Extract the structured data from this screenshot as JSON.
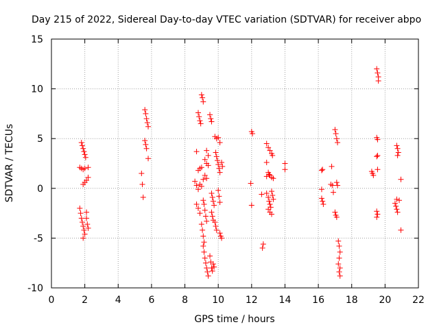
{
  "chart_data": {
    "type": "scatter",
    "title": "Day 215 of 2022, Sidereal Day-to-day VTEC variation (SDTVAR) for receiver abpo",
    "xlabel": "GPS time / hours",
    "ylabel": "SDTVAR / TECUs",
    "xlim": [
      0,
      22
    ],
    "ylim": [
      -10,
      15
    ],
    "xticks": [
      0,
      2,
      4,
      6,
      8,
      10,
      12,
      14,
      16,
      18,
      20,
      22
    ],
    "yticks": [
      -10,
      -5,
      0,
      5,
      10,
      15
    ],
    "xtick_labels": [
      "0",
      "2",
      "4",
      "6",
      "8",
      "10",
      "12",
      "14",
      "16",
      "18",
      "20",
      "22"
    ],
    "ytick_labels": [
      "-10",
      "-5",
      "0",
      "5",
      "10",
      "15"
    ],
    "grid": true,
    "marker": "+",
    "color": "#ff0000",
    "series": [
      {
        "name": "SDTVAR",
        "points": [
          [
            1.8,
            4.6
          ],
          [
            1.85,
            4.3
          ],
          [
            1.9,
            4.0
          ],
          [
            1.95,
            3.7
          ],
          [
            2.0,
            3.4
          ],
          [
            2.05,
            3.1
          ],
          [
            1.7,
            2.1
          ],
          [
            1.8,
            2.0
          ],
          [
            1.9,
            1.9
          ],
          [
            2.0,
            2.0
          ],
          [
            2.2,
            2.1
          ],
          [
            1.9,
            0.4
          ],
          [
            2.0,
            0.6
          ],
          [
            2.1,
            0.8
          ],
          [
            2.2,
            1.1
          ],
          [
            1.7,
            -2.0
          ],
          [
            1.75,
            -2.5
          ],
          [
            1.8,
            -3.0
          ],
          [
            1.85,
            -3.4
          ],
          [
            1.9,
            -3.8
          ],
          [
            1.95,
            -4.2
          ],
          [
            2.0,
            -4.6
          ],
          [
            1.9,
            -5.0
          ],
          [
            2.1,
            -2.4
          ],
          [
            2.1,
            -3.0
          ],
          [
            2.15,
            -3.6
          ],
          [
            2.2,
            -4.0
          ],
          [
            5.6,
            7.9
          ],
          [
            5.65,
            7.5
          ],
          [
            5.7,
            7.0
          ],
          [
            5.75,
            6.6
          ],
          [
            5.8,
            6.2
          ],
          [
            5.6,
            4.8
          ],
          [
            5.65,
            4.4
          ],
          [
            5.7,
            4.0
          ],
          [
            5.8,
            3.0
          ],
          [
            5.4,
            1.5
          ],
          [
            5.45,
            0.4
          ],
          [
            5.5,
            -0.9
          ],
          [
            9.0,
            9.4
          ],
          [
            9.05,
            9.1
          ],
          [
            9.1,
            8.7
          ],
          [
            8.8,
            7.6
          ],
          [
            8.85,
            7.2
          ],
          [
            8.9,
            6.8
          ],
          [
            8.95,
            6.5
          ],
          [
            9.5,
            7.4
          ],
          [
            9.55,
            7.0
          ],
          [
            9.6,
            6.7
          ],
          [
            8.7,
            3.7
          ],
          [
            9.3,
            3.8
          ],
          [
            9.4,
            3.3
          ],
          [
            9.2,
            2.9
          ],
          [
            9.3,
            2.5
          ],
          [
            9.4,
            2.3
          ],
          [
            8.8,
            1.8
          ],
          [
            8.9,
            2.0
          ],
          [
            9.0,
            2.1
          ],
          [
            8.6,
            0.7
          ],
          [
            8.7,
            0.3
          ],
          [
            8.8,
            -0.1
          ],
          [
            8.9,
            0.4
          ],
          [
            9.0,
            0.2
          ],
          [
            9.1,
            0.9
          ],
          [
            9.2,
            1.3
          ],
          [
            9.3,
            1.0
          ],
          [
            9.8,
            5.2
          ],
          [
            9.9,
            5.0
          ],
          [
            10.0,
            5.1
          ],
          [
            10.1,
            4.6
          ],
          [
            9.85,
            3.6
          ],
          [
            9.9,
            3.2
          ],
          [
            9.95,
            2.8
          ],
          [
            10.0,
            2.4
          ],
          [
            10.05,
            2.0
          ],
          [
            10.1,
            1.6
          ],
          [
            10.2,
            2.6
          ],
          [
            10.25,
            2.2
          ],
          [
            9.6,
            -0.5
          ],
          [
            9.65,
            -0.9
          ],
          [
            9.7,
            -1.3
          ],
          [
            9.75,
            -1.7
          ],
          [
            10.0,
            -0.2
          ],
          [
            10.05,
            -0.8
          ],
          [
            10.1,
            -1.4
          ],
          [
            8.7,
            -1.6
          ],
          [
            8.8,
            -2.0
          ],
          [
            8.9,
            -2.5
          ],
          [
            9.1,
            -1.2
          ],
          [
            9.15,
            -1.6
          ],
          [
            9.2,
            -2.2
          ],
          [
            9.25,
            -2.8
          ],
          [
            9.3,
            -3.3
          ],
          [
            9.0,
            -3.6
          ],
          [
            9.05,
            -4.2
          ],
          [
            9.1,
            -4.8
          ],
          [
            9.15,
            -5.4
          ],
          [
            9.6,
            -2.4
          ],
          [
            9.65,
            -2.8
          ],
          [
            9.7,
            -3.2
          ],
          [
            9.8,
            -3.4
          ],
          [
            9.85,
            -3.8
          ],
          [
            9.9,
            -4.2
          ],
          [
            10.1,
            -4.5
          ],
          [
            10.15,
            -4.8
          ],
          [
            10.2,
            -5.0
          ],
          [
            9.1,
            -5.8
          ],
          [
            9.15,
            -6.4
          ],
          [
            9.2,
            -7.0
          ],
          [
            9.25,
            -7.5
          ],
          [
            9.3,
            -8.0
          ],
          [
            9.35,
            -8.4
          ],
          [
            9.4,
            -8.8
          ],
          [
            9.5,
            -6.8
          ],
          [
            9.55,
            -7.4
          ],
          [
            9.6,
            -8.0
          ],
          [
            9.65,
            -8.3
          ],
          [
            9.7,
            -7.6
          ],
          [
            9.75,
            -7.9
          ],
          [
            12.0,
            5.7
          ],
          [
            12.05,
            5.5
          ],
          [
            11.95,
            0.5
          ],
          [
            12.0,
            -1.7
          ],
          [
            12.6,
            -0.6
          ],
          [
            12.7,
            -5.6
          ],
          [
            12.65,
            -6.0
          ],
          [
            12.9,
            4.5
          ],
          [
            13.0,
            4.1
          ],
          [
            13.1,
            3.8
          ],
          [
            13.2,
            3.5
          ],
          [
            13.25,
            3.3
          ],
          [
            12.9,
            2.6
          ],
          [
            13.0,
            1.6
          ],
          [
            13.05,
            1.4
          ],
          [
            13.1,
            1.3
          ],
          [
            13.2,
            1.1
          ],
          [
            12.9,
            1.2
          ],
          [
            13.3,
            1.0
          ],
          [
            12.9,
            -0.5
          ],
          [
            13.0,
            -0.9
          ],
          [
            13.05,
            -1.3
          ],
          [
            13.1,
            -1.6
          ],
          [
            13.15,
            -1.9
          ],
          [
            13.2,
            -0.3
          ],
          [
            13.25,
            -0.7
          ],
          [
            13.3,
            -1.1
          ],
          [
            13.0,
            -2.1
          ],
          [
            13.1,
            -2.4
          ],
          [
            13.2,
            -2.6
          ],
          [
            14.0,
            2.5
          ],
          [
            14.0,
            1.9
          ],
          [
            16.2,
            1.8
          ],
          [
            16.25,
            1.9
          ],
          [
            16.2,
            -0.1
          ],
          [
            16.2,
            -1.0
          ],
          [
            16.25,
            -1.3
          ],
          [
            16.3,
            -1.6
          ],
          [
            16.8,
            2.2
          ],
          [
            16.75,
            0.4
          ],
          [
            16.85,
            0.3
          ],
          [
            16.9,
            -0.4
          ],
          [
            17.0,
            5.9
          ],
          [
            17.05,
            5.5
          ],
          [
            17.1,
            5.0
          ],
          [
            17.15,
            4.6
          ],
          [
            17.1,
            0.6
          ],
          [
            17.15,
            0.3
          ],
          [
            17.0,
            -2.4
          ],
          [
            17.05,
            -2.7
          ],
          [
            17.1,
            -2.9
          ],
          [
            17.2,
            -5.3
          ],
          [
            17.25,
            -5.8
          ],
          [
            17.3,
            -6.4
          ],
          [
            17.25,
            -7.0
          ],
          [
            17.2,
            -7.6
          ],
          [
            17.3,
            -8.0
          ],
          [
            17.25,
            -8.4
          ],
          [
            17.3,
            -8.8
          ],
          [
            19.5,
            12.0
          ],
          [
            19.55,
            11.6
          ],
          [
            19.6,
            11.2
          ],
          [
            19.6,
            10.8
          ],
          [
            19.5,
            5.1
          ],
          [
            19.55,
            4.9
          ],
          [
            19.5,
            3.2
          ],
          [
            19.55,
            3.3
          ],
          [
            19.2,
            1.7
          ],
          [
            19.25,
            1.5
          ],
          [
            19.3,
            1.3
          ],
          [
            19.55,
            1.9
          ],
          [
            19.5,
            -2.3
          ],
          [
            19.55,
            -2.6
          ],
          [
            19.5,
            -2.9
          ],
          [
            20.7,
            4.3
          ],
          [
            20.75,
            4.0
          ],
          [
            20.8,
            3.6
          ],
          [
            20.75,
            3.3
          ],
          [
            20.95,
            0.9
          ],
          [
            20.7,
            -1.1
          ],
          [
            20.6,
            -1.5
          ],
          [
            20.65,
            -1.8
          ],
          [
            20.7,
            -2.1
          ],
          [
            20.75,
            -2.4
          ],
          [
            20.85,
            -1.2
          ],
          [
            20.95,
            -4.2
          ]
        ]
      }
    ]
  }
}
